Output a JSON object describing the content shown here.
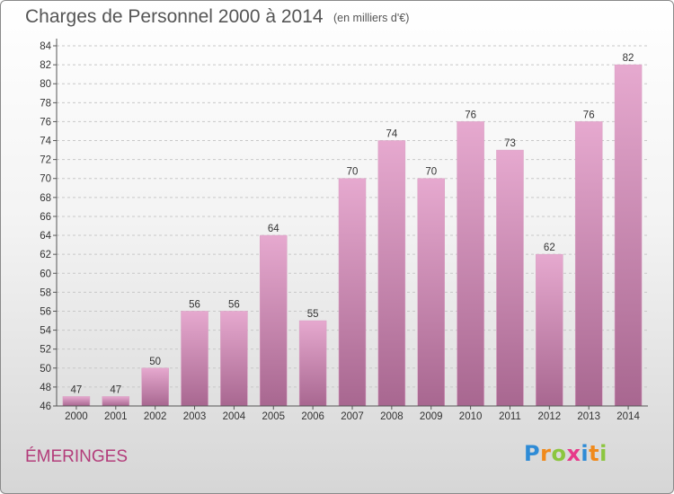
{
  "header": {
    "title": "Charges de Personnel 2000 à 2014",
    "subtitle": "(en milliers d'€)"
  },
  "footer": {
    "commune": "ÉMERINGES",
    "logo_letters": [
      "P",
      "r",
      "o",
      "x",
      "i",
      "t",
      "i"
    ],
    "logo_colors": [
      "#2e8bd6",
      "#f08a1c",
      "#8cc63f",
      "#e73a8a",
      "#2e8bd6",
      "#f08a1c",
      "#8cc63f"
    ]
  },
  "colors": {
    "bar_top": "#e6a9cf",
    "bar_bottom": "#a86790",
    "grid": "#c8c8c8",
    "axis": "#555555"
  },
  "chart_data": {
    "type": "bar",
    "title": "Charges de Personnel 2000 à 2014",
    "subtitle": "(en milliers d'€)",
    "categories": [
      "2000",
      "2001",
      "2002",
      "2003",
      "2004",
      "2005",
      "2006",
      "2007",
      "2008",
      "2009",
      "2010",
      "2011",
      "2012",
      "2013",
      "2014"
    ],
    "values": [
      47,
      47,
      50,
      56,
      56,
      64,
      55,
      70,
      74,
      70,
      76,
      73,
      62,
      76,
      82
    ],
    "ylim": [
      46,
      84
    ],
    "yticks": [
      46,
      48,
      50,
      52,
      54,
      56,
      58,
      60,
      62,
      64,
      66,
      68,
      70,
      72,
      74,
      76,
      78,
      80,
      82,
      84
    ],
    "grid": true,
    "data_labels": true
  }
}
